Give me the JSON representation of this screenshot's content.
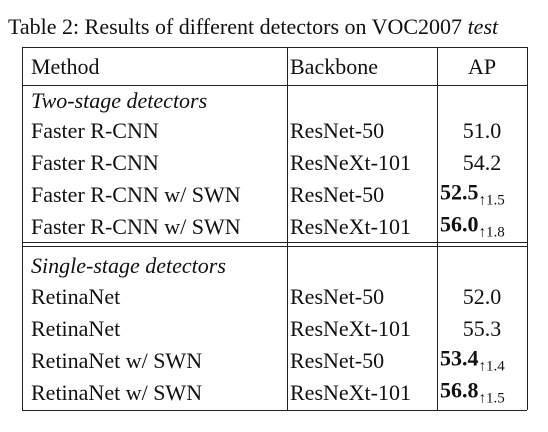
{
  "caption": {
    "label": "Table 2:",
    "text": "Results of different detectors on VOC2007",
    "emphasis": "test"
  },
  "table": {
    "header": [
      "Method",
      "Backbone",
      "AP"
    ],
    "sections": [
      {
        "title": "Two-stage detectors",
        "rows": [
          {
            "method": "Faster R-CNN",
            "backbone": "ResNet-50",
            "ap": "51.0"
          },
          {
            "method": "Faster R-CNN",
            "backbone": "ResNeXt-101",
            "ap": "54.2"
          },
          {
            "method": "Faster R-CNN w/ SWN",
            "backbone": "ResNet-50",
            "ap": "52.5",
            "gain": "↑1.5"
          },
          {
            "method": "Faster R-CNN w/ SWN",
            "backbone": "ResNeXt-101",
            "ap": "56.0",
            "gain": "↑1.8"
          }
        ]
      },
      {
        "title": "Single-stage detectors",
        "rows": [
          {
            "method": "RetinaNet",
            "backbone": "ResNet-50",
            "ap": "52.0"
          },
          {
            "method": "RetinaNet",
            "backbone": "ResNeXt-101",
            "ap": "55.3"
          },
          {
            "method": "RetinaNet w/ SWN",
            "backbone": "ResNet-50",
            "ap": "53.4",
            "gain": "↑1.4"
          },
          {
            "method": "RetinaNet w/ SWN",
            "backbone": "ResNeXt-101",
            "ap": "56.8",
            "gain": "↑1.5"
          }
        ]
      }
    ]
  }
}
